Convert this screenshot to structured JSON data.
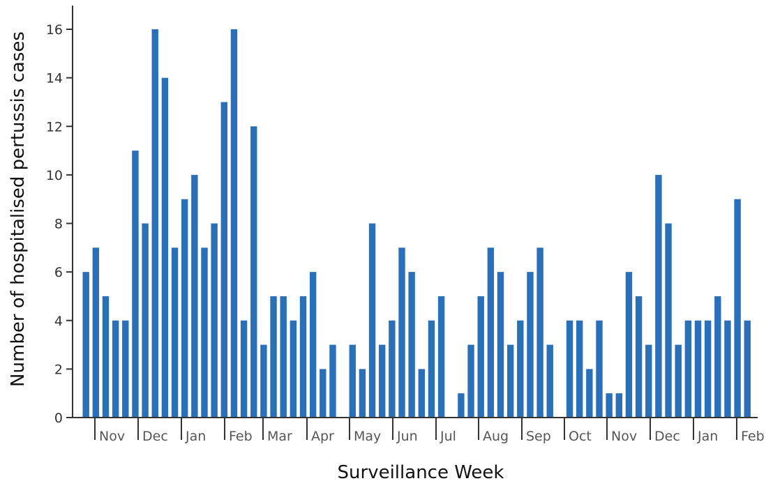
{
  "chart_data": {
    "type": "bar",
    "xlabel": "Surveillance Week",
    "ylabel": "Number of hospitalised pertussis cases",
    "ylim": [
      0,
      17
    ],
    "yticks": [
      0,
      2,
      4,
      6,
      8,
      10,
      12,
      14,
      16
    ],
    "grid": false,
    "bar_color": "#2a70b8",
    "month_labels": [
      "Nov",
      "Dec",
      "Jan",
      "Feb",
      "Mar",
      "Apr",
      "May",
      "Jun",
      "Jul",
      "Aug",
      "Sep",
      "Oct",
      "Nov",
      "Dec",
      "Jan",
      "Feb"
    ],
    "values": [
      6,
      7,
      5,
      4,
      4,
      11,
      8,
      16,
      14,
      7,
      9,
      10,
      7,
      8,
      13,
      16,
      4,
      12,
      3,
      5,
      5,
      4,
      5,
      6,
      2,
      3,
      0,
      3,
      2,
      8,
      3,
      4,
      7,
      6,
      2,
      4,
      5,
      0,
      1,
      3,
      5,
      7,
      6,
      3,
      4,
      6,
      7,
      3,
      0,
      4,
      4,
      2,
      4,
      1,
      1,
      6,
      5,
      3,
      10,
      8,
      3,
      4,
      4,
      4,
      5,
      4,
      9,
      4
    ]
  }
}
